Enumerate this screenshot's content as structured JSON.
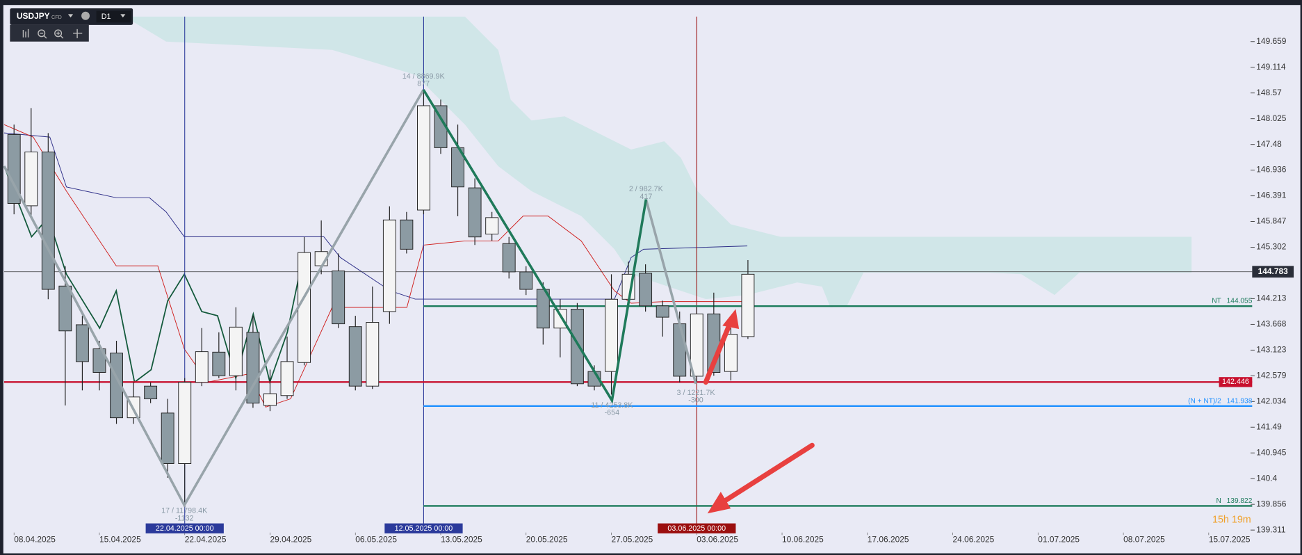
{
  "chart_data": {
    "type": "candlestick",
    "symbol": "USDJPY",
    "symbol_tag": "CFD",
    "timeframe": "D1",
    "x": [
      0,
      1,
      2,
      3,
      4,
      5,
      6,
      7,
      8,
      9,
      10,
      11,
      12,
      13,
      14,
      15,
      16,
      17,
      18,
      19,
      20,
      21,
      22,
      23,
      24,
      25,
      26,
      27,
      28,
      29,
      30,
      31,
      32,
      33,
      34,
      35,
      36,
      37,
      38,
      39,
      40,
      41,
      42,
      43
    ],
    "open": [
      147.69,
      146.18,
      147.32,
      144.48,
      143.66,
      143.15,
      143.06,
      141.69,
      142.36,
      141.79,
      140.72,
      142.44,
      143.08,
      142.58,
      143.5,
      141.95,
      142.16,
      142.86,
      144.91,
      144.8,
      143.62,
      142.36,
      143.94,
      145.88,
      146.09,
      148.3,
      147.41,
      146.56,
      145.58,
      145.38,
      144.78,
      144.41,
      143.59,
      143.99,
      142.67,
      142.67,
      144.2,
      144.75,
      144.06,
      143.68,
      142.57,
      143.89,
      142.67,
      143.41
    ],
    "high": [
      147.9,
      148.25,
      147.72,
      144.9,
      143.85,
      143.32,
      143.32,
      142.44,
      142.44,
      142.09,
      142.53,
      143.59,
      143.5,
      144.03,
      143.85,
      142.71,
      143.41,
      145.52,
      145.87,
      145.17,
      143.85,
      144.47,
      146.17,
      146.05,
      148.6,
      148.43,
      147.9,
      146.76,
      146.05,
      145.52,
      144.9,
      144.56,
      144.2,
      144.12,
      142.8,
      144.73,
      145.0,
      144.94,
      144.17,
      143.94,
      144.03,
      144.34,
      143.59,
      145.03
    ],
    "low": [
      146.0,
      145.93,
      144.2,
      141.95,
      142.27,
      142.27,
      141.56,
      141.56,
      142.0,
      140.42,
      139.8,
      142.36,
      142.53,
      142.27,
      141.9,
      141.83,
      142.09,
      142.8,
      144.73,
      143.59,
      142.27,
      142.3,
      143.68,
      145.17,
      146.0,
      147.28,
      145.96,
      145.35,
      145.44,
      144.64,
      144.29,
      143.24,
      142.97,
      142.36,
      142.27,
      142.18,
      144.03,
      143.94,
      143.41,
      142.44,
      142.44,
      142.58,
      142.48,
      143.36
    ],
    "close": [
      146.23,
      147.32,
      144.41,
      143.53,
      142.88,
      142.65,
      141.69,
      142.13,
      142.09,
      140.72,
      142.44,
      143.09,
      142.58,
      143.61,
      142.0,
      142.2,
      142.88,
      145.19,
      145.21,
      143.68,
      142.36,
      143.71,
      145.88,
      145.26,
      148.3,
      147.41,
      146.58,
      145.52,
      145.93,
      144.78,
      144.41,
      143.59,
      143.99,
      142.41,
      142.36,
      144.2,
      144.73,
      144.06,
      143.82,
      142.57,
      143.89,
      142.65,
      143.46,
      144.73
    ],
    "up_color": "#f4f4f4",
    "down_color": "#8c9ba3",
    "xlim": [
      -0.58,
      72.4
    ],
    "xticks": [
      {
        "value": 0,
        "label": "08.04.2025"
      },
      {
        "value": 5,
        "label": "15.04.2025"
      },
      {
        "value": 10,
        "label": "22.04.2025"
      },
      {
        "value": 15,
        "label": "29.04.2025"
      },
      {
        "value": 20,
        "label": "06.05.2025"
      },
      {
        "value": 25,
        "label": "13.05.2025"
      },
      {
        "value": 30,
        "label": "20.05.2025"
      },
      {
        "value": 35,
        "label": "27.05.2025"
      },
      {
        "value": 40,
        "label": "03.06.2025"
      },
      {
        "value": 45,
        "label": "10.06.2025"
      },
      {
        "value": 50,
        "label": "17.06.2025"
      },
      {
        "value": 55,
        "label": "24.06.2025"
      },
      {
        "value": 60,
        "label": "01.07.2025"
      },
      {
        "value": 65,
        "label": "08.07.2025"
      },
      {
        "value": 70,
        "label": "15.07.2025"
      }
    ],
    "ylim": [
      139.276,
      150.187
    ],
    "yticks": [
      149.659,
      149.114,
      148.57,
      148.025,
      147.48,
      146.936,
      146.391,
      145.847,
      145.302,
      144.213,
      143.668,
      143.123,
      142.579,
      142.034,
      141.49,
      140.945,
      140.4,
      139.856,
      139.311
    ],
    "last_price": 144.783,
    "levels": [
      {
        "name": "NT",
        "value": 144.055,
        "color": "#1a7a5a"
      },
      {
        "value": 142.446,
        "color": "#c8102e"
      },
      {
        "name": "(N + NT)/2",
        "value": 141.938,
        "color": "#1e90ff"
      },
      {
        "name": "N",
        "value": 139.822,
        "color": "#1a7a5a"
      }
    ],
    "markers": [
      {
        "x": 10,
        "label": "22.04.2025 00:00",
        "color": "#2b3a9b"
      },
      {
        "x": 24,
        "label": "12.05.2025 00:00",
        "color": "#2b3a9b"
      },
      {
        "x": 40,
        "label": "03.06.2025 00:00",
        "color": "#9b0f0f"
      }
    ],
    "annotations": [
      {
        "text": "14 / 8869.9K",
        "sub": "877"
      },
      {
        "text": "2 / 982.7K",
        "sub": "417"
      },
      {
        "text": "11 / 4253.8K",
        "sub": "-654"
      },
      {
        "text": "3 / 1221.7K",
        "sub": "-300"
      },
      {
        "text": "17 / 11798.4K",
        "sub": "-1132"
      }
    ],
    "timer": "15h 19m"
  }
}
